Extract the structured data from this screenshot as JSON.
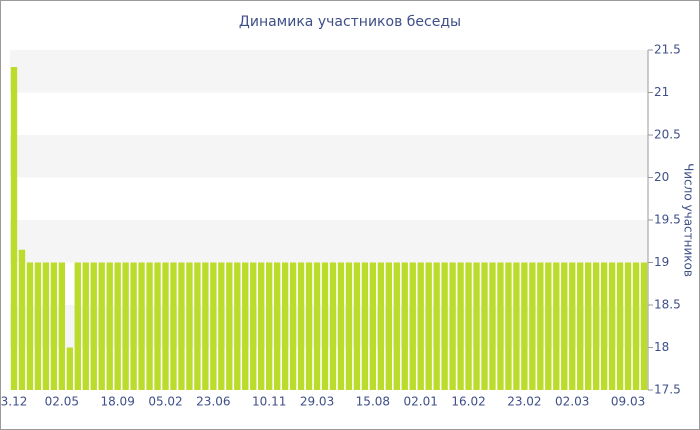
{
  "chart_data": {
    "type": "bar",
    "title": "Динамика участников беседы",
    "y_label": "Число участников",
    "categories": [
      "3.12",
      null,
      null,
      null,
      null,
      null,
      "02.05",
      null,
      null,
      null,
      null,
      null,
      null,
      "18.09",
      null,
      null,
      null,
      null,
      null,
      "05.02",
      null,
      null,
      null,
      null,
      null,
      "23.06",
      null,
      null,
      null,
      null,
      null,
      null,
      "10.11",
      null,
      null,
      null,
      null,
      null,
      "29.03",
      null,
      null,
      null,
      null,
      null,
      null,
      "15.08",
      null,
      null,
      null,
      null,
      null,
      "02.01",
      null,
      null,
      null,
      null,
      null,
      "16.02",
      null,
      null,
      null,
      null,
      null,
      null,
      "23.02",
      null,
      null,
      null,
      null,
      null,
      "02.03",
      null,
      null,
      null,
      null,
      null,
      null,
      "09.03",
      null,
      null
    ],
    "values": [
      21.3,
      19.15,
      19,
      19,
      19,
      19,
      19,
      18,
      19,
      19,
      19,
      19,
      19,
      19,
      19,
      19,
      19,
      19,
      19,
      19,
      19,
      19,
      19,
      19,
      19,
      19,
      19,
      19,
      19,
      19,
      19,
      19,
      19,
      19,
      19,
      19,
      19,
      19,
      19,
      19,
      19,
      19,
      19,
      19,
      19,
      19,
      19,
      19,
      19,
      19,
      19,
      19,
      19,
      19,
      19,
      19,
      19,
      19,
      19,
      19,
      19,
      19,
      19,
      19,
      19,
      19,
      19,
      19,
      19,
      19,
      19,
      19,
      19,
      19,
      19,
      19,
      19,
      19,
      19,
      19
    ],
    "color": "#bcdc2c",
    "ylim": [
      17.5,
      21.5
    ],
    "yticks": [
      17.5,
      18,
      18.5,
      19,
      19.5,
      20,
      20.5,
      21,
      21.5
    ],
    "grid": "bands"
  }
}
